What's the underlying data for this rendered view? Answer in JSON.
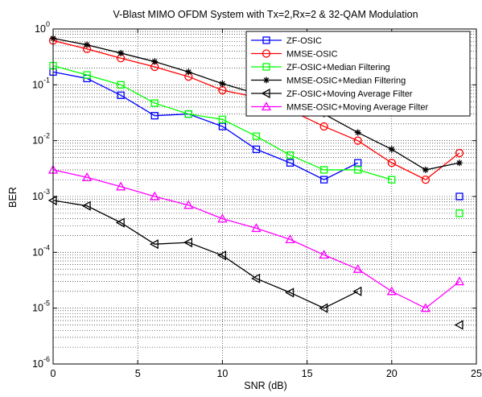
{
  "chart_data": {
    "type": "line",
    "title": "V-Blast MIMO OFDM System with Tx=2,Rx=2 & 32-QAM Modulation",
    "xlabel": "SNR (dB)",
    "ylabel": "BER",
    "xlim": [
      0,
      25
    ],
    "ylim": [
      1e-06,
      1
    ],
    "yscale": "log",
    "grid": true,
    "legend_position": "top-right",
    "x_ticks": [
      {
        "value": 0,
        "label": "0"
      },
      {
        "value": 5,
        "label": "5"
      },
      {
        "value": 10,
        "label": "10"
      },
      {
        "value": 15,
        "label": "15"
      },
      {
        "value": 20,
        "label": "20"
      },
      {
        "value": 25,
        "label": "25"
      }
    ],
    "y_ticks": [
      {
        "value": 1,
        "base": "10",
        "exp": "0"
      },
      {
        "value": 0.1,
        "base": "10",
        "exp": "-1"
      },
      {
        "value": 0.01,
        "base": "10",
        "exp": "-2"
      },
      {
        "value": 0.001,
        "base": "10",
        "exp": "-3"
      },
      {
        "value": 0.0001,
        "base": "10",
        "exp": "-4"
      },
      {
        "value": 1e-05,
        "base": "10",
        "exp": "-5"
      },
      {
        "value": 1e-06,
        "base": "10",
        "exp": "-6"
      }
    ],
    "series": [
      {
        "name": "ZF-OSIC",
        "color": "#0000ff",
        "marker": "square",
        "x": [
          0,
          2,
          4,
          6,
          8,
          10,
          12,
          14,
          16,
          18,
          20,
          22,
          24
        ],
        "y": [
          0.17,
          0.13,
          0.065,
          0.028,
          0.03,
          0.018,
          0.007,
          0.004,
          0.002,
          0.004,
          null,
          null,
          0.001
        ]
      },
      {
        "name": "MMSE-OSIC",
        "color": "#ff0000",
        "marker": "circle",
        "x": [
          0,
          2,
          4,
          6,
          8,
          10,
          12,
          14,
          16,
          18,
          20,
          22,
          24
        ],
        "y": [
          0.62,
          0.44,
          0.3,
          0.21,
          0.14,
          0.08,
          0.06,
          0.035,
          0.018,
          0.01,
          0.004,
          0.002,
          0.006
        ]
      },
      {
        "name": "ZF-OSIC+Median Filtering",
        "color": "#00ff00",
        "marker": "square",
        "x": [
          0,
          2,
          4,
          6,
          8,
          10,
          12,
          14,
          16,
          18,
          20,
          22,
          24
        ],
        "y": [
          0.22,
          0.15,
          0.1,
          0.047,
          0.03,
          0.024,
          0.012,
          0.0055,
          0.003,
          0.003,
          0.002,
          null,
          0.0005
        ]
      },
      {
        "name": "MMSE-OSIC+Median Filtering",
        "color": "#000000",
        "marker": "asterisk",
        "x": [
          0,
          2,
          4,
          6,
          8,
          10,
          12,
          14,
          16,
          18,
          20,
          22,
          24
        ],
        "y": [
          0.68,
          0.52,
          0.37,
          0.26,
          0.17,
          0.105,
          0.07,
          0.045,
          0.03,
          0.014,
          0.007,
          0.003,
          0.004
        ]
      },
      {
        "name": "ZF-OSIC+Moving Average Filter",
        "color": "#000000",
        "marker": "triangle-left",
        "x": [
          0,
          2,
          4,
          6,
          8,
          10,
          12,
          14,
          16,
          18,
          20,
          22,
          24
        ],
        "y": [
          0.00085,
          0.00068,
          0.00034,
          0.00014,
          0.00015,
          8.8e-05,
          3.4e-05,
          1.9e-05,
          1e-05,
          2e-05,
          null,
          null,
          5e-06
        ]
      },
      {
        "name": "MMSE-OSIC+Moving Average Filter",
        "color": "#ff00ff",
        "marker": "triangle-up",
        "x": [
          0,
          2,
          4,
          6,
          8,
          10,
          12,
          14,
          16,
          18,
          20,
          22,
          24
        ],
        "y": [
          0.003,
          0.0022,
          0.0015,
          0.001,
          0.0007,
          0.0004,
          0.00027,
          0.00017,
          9e-05,
          5e-05,
          2e-05,
          1e-05,
          3e-05
        ]
      }
    ]
  }
}
